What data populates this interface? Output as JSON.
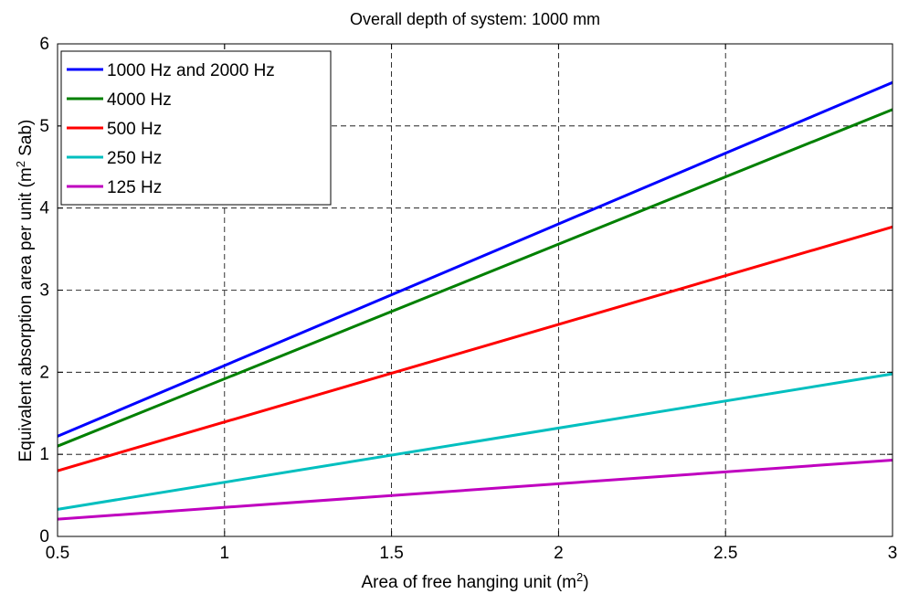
{
  "chart_data": {
    "type": "line",
    "title": "Overall depth of system: 1000 mm",
    "xlabel": {
      "text": "Area of free hanging unit (m",
      "sup": "2",
      "tail": ")"
    },
    "ylabel": {
      "text": "Equivalent absorption area per unit (m",
      "sup": "2",
      "tail": " Sab)"
    },
    "xlim": [
      0.5,
      3
    ],
    "ylim": [
      0,
      6
    ],
    "xticks": [
      0.5,
      1,
      1.5,
      2,
      2.5,
      3
    ],
    "xtick_labels": [
      "0.5",
      "1",
      "1.5",
      "2",
      "2.5",
      "3"
    ],
    "yticks": [
      0,
      1,
      2,
      3,
      4,
      5,
      6
    ],
    "ytick_labels": [
      "0",
      "1",
      "2",
      "3",
      "4",
      "5",
      "6"
    ],
    "grid": true,
    "legend_position": "top-left",
    "x": [
      0.5,
      3
    ],
    "series": [
      {
        "name": "1000 Hz and 2000 Hz",
        "color": "#0000ff",
        "values": [
          1.22,
          5.53
        ]
      },
      {
        "name": "4000 Hz",
        "color": "#008000",
        "values": [
          1.1,
          5.2
        ]
      },
      {
        "name": "500 Hz",
        "color": "#ff0000",
        "values": [
          0.8,
          3.77
        ]
      },
      {
        "name": "250 Hz",
        "color": "#00bfbf",
        "values": [
          0.33,
          1.98
        ]
      },
      {
        "name": "125 Hz",
        "color": "#bf00bf",
        "values": [
          0.21,
          0.93
        ]
      }
    ]
  }
}
